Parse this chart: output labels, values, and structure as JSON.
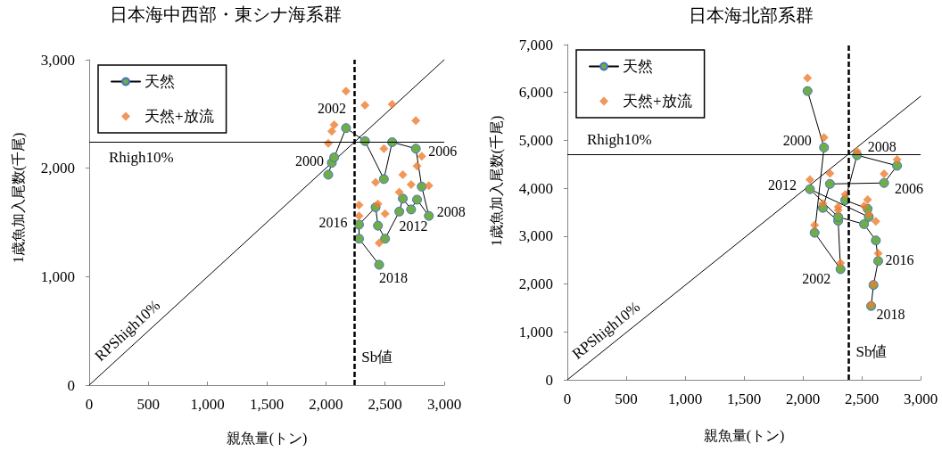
{
  "chart_data": [
    {
      "type": "line",
      "title": "日本海中西部・東シナ海系群",
      "xlabel": "親魚量(トン)",
      "ylabel": "1歳魚加入尾数(千尾)",
      "xlim": [
        0,
        3000
      ],
      "xticks": [
        {
          "value": 0,
          "label": "0"
        },
        500,
        {
          "value": 1000,
          "label": "1,000"
        },
        {
          "value": 1500,
          "label": "1,500"
        },
        {
          "value": 2000,
          "label": "2,000"
        },
        {
          "value": 2500,
          "label": "2,500"
        },
        {
          "value": 3000,
          "label": "3,000"
        }
      ],
      "ylim": [
        0,
        3000
      ],
      "yticks": [
        {
          "value": 0,
          "label": "0"
        },
        {
          "value": 1000,
          "label": "1,000"
        },
        {
          "value": 2000,
          "label": "2,000"
        },
        {
          "value": 3000,
          "label": "3,000"
        }
      ],
      "legend": "top left",
      "series": [
        {
          "name": "天然",
          "type": "line",
          "color": "#70ad47",
          "marker": "circle",
          "x": [
            2020,
            2050,
            2070,
            2170,
            2330,
            2490,
            2560,
            2760,
            2810,
            2870,
            2770,
            2720,
            2650,
            2620,
            2500,
            2440,
            2420,
            2280,
            2280,
            2450
          ],
          "values": [
            1940,
            2050,
            2100,
            2370,
            2250,
            1900,
            2240,
            2180,
            1830,
            1560,
            1710,
            1620,
            1720,
            1600,
            1350,
            1470,
            1640,
            1480,
            1350,
            1110
          ]
        },
        {
          "name": "天然+放流",
          "type": "scatter",
          "color": "#ed7d31",
          "marker": "diamond",
          "x": [
            2020,
            2050,
            2070,
            2170,
            2330,
            2490,
            2560,
            2760,
            2810,
            2870,
            2770,
            2720,
            2650,
            2620,
            2500,
            2440,
            2420,
            2280,
            2280,
            2450
          ],
          "values": [
            2230,
            2340,
            2400,
            2710,
            2580,
            2180,
            2590,
            2440,
            2110,
            1840,
            2020,
            1850,
            1940,
            1780,
            1580,
            1670,
            1870,
            1660,
            1560,
            1310
          ]
        },
        {
          "name": "RPShigh10%",
          "type": "line",
          "color": "#000000",
          "marker": "none",
          "x": [
            0,
            3000
          ],
          "values": [
            0,
            3000
          ]
        }
      ],
      "ref_lines": [
        {
          "axis": "y",
          "value": 2240,
          "label": "Rhigh10%",
          "color": "#000000"
        },
        {
          "axis": "x",
          "value": 2240,
          "label": "Sb値",
          "color": "#000000",
          "line_style": "dashed"
        }
      ],
      "annotations": [
        {
          "text": "2000",
          "x": 2050,
          "y": 2050
        },
        {
          "text": "2002",
          "x": 2170,
          "y": 2370
        },
        {
          "text": "2006",
          "x": 2760,
          "y": 2180
        },
        {
          "text": "2008",
          "x": 2870,
          "y": 1560
        },
        {
          "text": "2012",
          "x": 2620,
          "y": 1600
        },
        {
          "text": "2016",
          "x": 2280,
          "y": 1480
        },
        {
          "text": "2018",
          "x": 2450,
          "y": 1110
        }
      ]
    },
    {
      "type": "line",
      "title": "日本海北部系群",
      "xlabel": "親魚量(トン)",
      "ylabel": "1歳魚加入尾数(千尾)",
      "xlim": [
        0,
        3000
      ],
      "xticks": [
        {
          "value": 0,
          "label": "0"
        },
        500,
        {
          "value": 1000,
          "label": "1,000"
        },
        {
          "value": 1500,
          "label": "1,500"
        },
        {
          "value": 2000,
          "label": "2,000"
        },
        {
          "value": 2500,
          "label": "2,500"
        },
        {
          "value": 3000,
          "label": "3,000"
        }
      ],
      "ylim": [
        0,
        7000
      ],
      "yticks": [
        {
          "value": 0,
          "label": "0"
        },
        {
          "value": 1000,
          "label": "1,000"
        },
        {
          "value": 2000,
          "label": "2,000"
        },
        {
          "value": 3000,
          "label": "3,000"
        },
        {
          "value": 4000,
          "label": "4,000"
        },
        {
          "value": 5000,
          "label": "5,000"
        },
        {
          "value": 6000,
          "label": "6,000"
        },
        {
          "value": 7000,
          "label": "7,000"
        }
      ],
      "legend": "top left",
      "series": [
        {
          "name": "天然",
          "type": "line",
          "color": "#70ad47",
          "marker": "circle",
          "x": [
            2040,
            2180,
            2100,
            2320,
            2300,
            2170,
            2230,
            2690,
            2800,
            2460,
            2360,
            2550,
            2560,
            2060,
            2300,
            2520,
            2620,
            2640,
            2600,
            2580
          ],
          "values": [
            6030,
            4850,
            3070,
            2310,
            3320,
            3590,
            4090,
            4110,
            4470,
            4690,
            3750,
            3570,
            3400,
            3980,
            3400,
            3250,
            2910,
            2480,
            1980,
            1540
          ]
        },
        {
          "name": "天然+放流",
          "type": "scatter",
          "color": "#ed7d31",
          "marker": "diamond",
          "x": [
            2040,
            2180,
            2100,
            2320,
            2300,
            2170,
            2230,
            2690,
            2800,
            2460,
            2360,
            2550,
            2560,
            2060,
            2300,
            2520,
            2620,
            2640,
            2600,
            2580
          ],
          "values": [
            6300,
            5060,
            3230,
            2440,
            3540,
            3680,
            4310,
            4300,
            4600,
            4770,
            3870,
            3760,
            3460,
            4180,
            3610,
            3630,
            3310,
            2640,
            1990,
            1570
          ]
        },
        {
          "name": "RPShigh10%",
          "type": "line",
          "color": "#000000",
          "marker": "none",
          "x": [
            0,
            3000
          ],
          "values": [
            0,
            5920
          ]
        }
      ],
      "ref_lines": [
        {
          "axis": "y",
          "value": 4710,
          "label": "Rhigh10%",
          "color": "#000000"
        },
        {
          "axis": "x",
          "value": 2390,
          "label": "Sb値",
          "color": "#000000",
          "line_style": "dashed"
        }
      ],
      "annotations": [
        {
          "text": "2000",
          "x": 2180,
          "y": 4850
        },
        {
          "text": "2002",
          "x": 2320,
          "y": 2310
        },
        {
          "text": "2006",
          "x": 2690,
          "y": 4110
        },
        {
          "text": "2008",
          "x": 2460,
          "y": 4690
        },
        {
          "text": "2012",
          "x": 2060,
          "y": 3980
        },
        {
          "text": "2016",
          "x": 2640,
          "y": 2480
        },
        {
          "text": "2018",
          "x": 2580,
          "y": 1540
        }
      ]
    }
  ]
}
